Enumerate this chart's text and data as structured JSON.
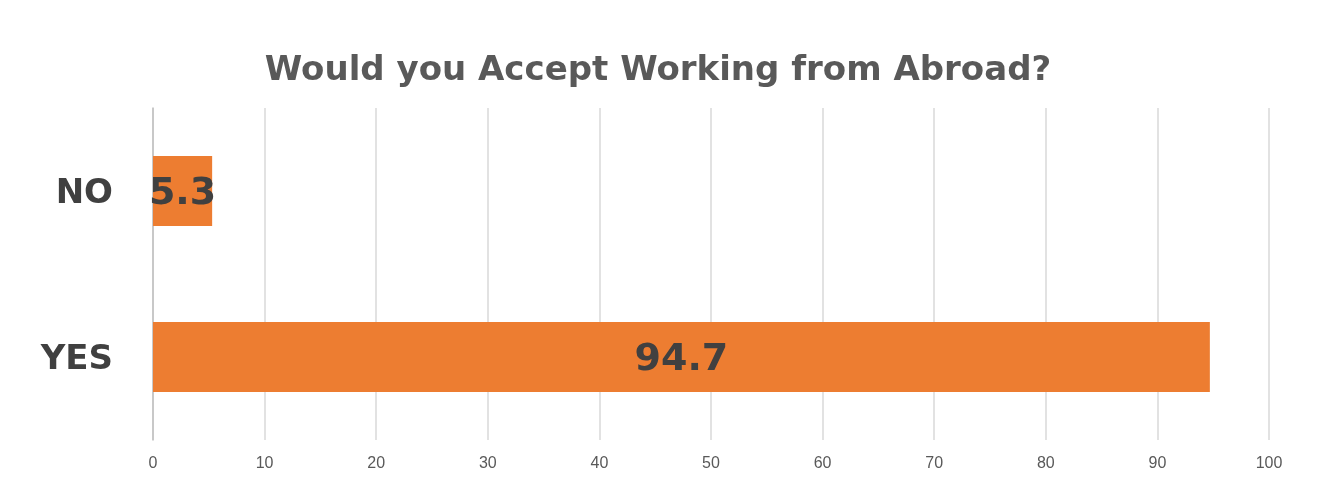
{
  "chart_data": {
    "type": "bar",
    "orientation": "horizontal",
    "title": "Would you Accept Working from Abroad?",
    "categories": [
      "NO",
      "YES"
    ],
    "values": [
      5.3,
      94.7
    ],
    "color": "#ed7d31",
    "xlim": [
      0,
      100
    ],
    "xticks": [
      0,
      10,
      20,
      30,
      40,
      50,
      60,
      70,
      80,
      90,
      100
    ],
    "grid": "x",
    "data_labels": true
  }
}
